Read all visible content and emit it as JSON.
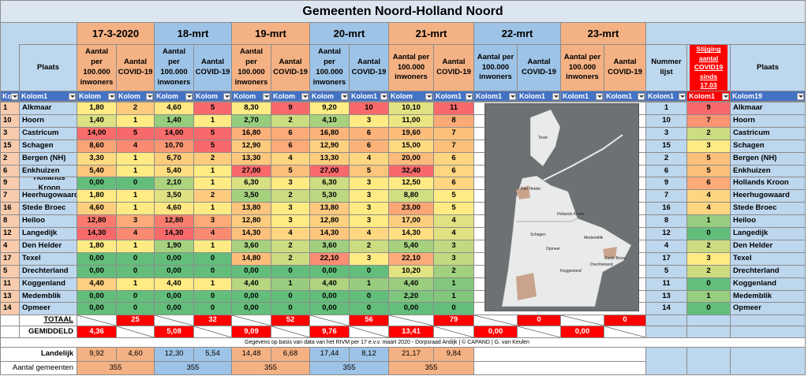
{
  "title": "Gemeenten Noord-Holland Noord",
  "dates": [
    "17-3-2020",
    "18-mrt",
    "19-mrt",
    "20-mrt",
    "21-mrt",
    "22-mrt",
    "23-mrt"
  ],
  "column_headers": {
    "place": "Plaats",
    "per_100k": "Aantal per 100.000 inwoners",
    "covid": "Aantal COVID-19",
    "list_number": "Nummer lijst",
    "increase": "Stijging aantal COVID19 sinds 17.03",
    "place_right": "Plaats"
  },
  "filters": [
    "Koloi",
    "Kolom1",
    "Kolom",
    "Kolom",
    "Kolom",
    "Kolom",
    "Kolom",
    "Kolom",
    "Kolom",
    "Kolom1",
    "Kolom",
    "Kolom1",
    "Kolom1",
    "Kolom1",
    "Kolom1",
    "Kolom1",
    "Kolom1",
    "Kolom1",
    "Kolom19"
  ],
  "rows": [
    {
      "id": 1,
      "place": "Alkmaar",
      "values": [
        "1,80",
        2,
        "4,60",
        5,
        "8,30",
        9,
        "9,20",
        10,
        "10,10",
        11
      ],
      "list_number": 1,
      "increase": 9,
      "place_right": "Alkmaar"
    },
    {
      "id": 10,
      "place": "Hoorn",
      "values": [
        "1,40",
        1,
        "1,40",
        1,
        "2,70",
        2,
        "4,10",
        3,
        "11,00",
        8
      ],
      "list_number": 10,
      "increase": 7,
      "place_right": "Hoorn"
    },
    {
      "id": 3,
      "place": "Castricum",
      "values": [
        "14,00",
        5,
        "14,00",
        5,
        "16,80",
        6,
        "16,80",
        6,
        "19,60",
        7
      ],
      "list_number": 3,
      "increase": 2,
      "place_right": "Castricum"
    },
    {
      "id": 15,
      "place": "Schagen",
      "values": [
        "8,60",
        4,
        "10,70",
        5,
        "12,90",
        6,
        "12,90",
        6,
        "15,00",
        7
      ],
      "list_number": 15,
      "increase": 3,
      "place_right": "Schagen"
    },
    {
      "id": 2,
      "place": "Bergen (NH)",
      "values": [
        "3,30",
        1,
        "6,70",
        2,
        "13,30",
        4,
        "13,30",
        4,
        "20,00",
        6
      ],
      "list_number": 2,
      "increase": 5,
      "place_right": "Bergen (NH)"
    },
    {
      "id": 6,
      "place": "Enkhuizen",
      "values": [
        "5,40",
        1,
        "5,40",
        1,
        "27,00",
        5,
        "27,00",
        5,
        "32,40",
        6
      ],
      "list_number": 6,
      "increase": 5,
      "place_right": "Enkhuizen"
    },
    {
      "id": 9,
      "place": "Hollands Kroon",
      "values": [
        "0,00",
        0,
        "2,10",
        1,
        "6,30",
        3,
        "6,30",
        3,
        "12,50",
        6
      ],
      "list_number": 9,
      "increase": 6,
      "place_right": "Hollands Kroon"
    },
    {
      "id": 7,
      "place": "Heerhugowaard",
      "values": [
        "1,80",
        1,
        "3,50",
        2,
        "3,50",
        2,
        "5,30",
        3,
        "8,80",
        5
      ],
      "list_number": 7,
      "increase": 4,
      "place_right": "Heerhugowaard"
    },
    {
      "id": 16,
      "place": "Stede Broec",
      "values": [
        "4,60",
        1,
        "4,60",
        1,
        "13,80",
        3,
        "13,80",
        3,
        "23,00",
        5
      ],
      "list_number": 16,
      "increase": 4,
      "place_right": "Stede Broec"
    },
    {
      "id": 8,
      "place": "Heiloo",
      "values": [
        "12,80",
        3,
        "12,80",
        3,
        "12,80",
        3,
        "12,80",
        3,
        "17,00",
        4
      ],
      "list_number": 8,
      "increase": 1,
      "place_right": "Heiloo"
    },
    {
      "id": 12,
      "place": "Langedijk",
      "values": [
        "14,30",
        4,
        "14,30",
        4,
        "14,30",
        4,
        "14,30",
        4,
        "14,30",
        4
      ],
      "list_number": 12,
      "increase": 0,
      "place_right": "Langedijk"
    },
    {
      "id": 4,
      "place": "Den Helder",
      "values": [
        "1,80",
        1,
        "1,90",
        1,
        "3,60",
        2,
        "3,60",
        2,
        "5,40",
        3
      ],
      "list_number": 4,
      "increase": 2,
      "place_right": "Den Helder"
    },
    {
      "id": 17,
      "place": "Texel",
      "values": [
        "0,00",
        0,
        "0,00",
        0,
        "14,80",
        2,
        "22,10",
        3,
        "22,10",
        3
      ],
      "list_number": 17,
      "increase": 3,
      "place_right": "Texel"
    },
    {
      "id": 5,
      "place": "Drechterland",
      "values": [
        "0,00",
        0,
        "0,00",
        0,
        "0,00",
        0,
        "0,00",
        0,
        "10,20",
        2
      ],
      "list_number": 5,
      "increase": 2,
      "place_right": "Drechterland"
    },
    {
      "id": 11,
      "place": "Koggenland",
      "values": [
        "4,40",
        1,
        "4,40",
        1,
        "4,40",
        1,
        "4,40",
        1,
        "4,40",
        1
      ],
      "list_number": 11,
      "increase": 0,
      "place_right": "Koggenland"
    },
    {
      "id": 13,
      "place": "Medemblik",
      "values": [
        "0,00",
        0,
        "0,00",
        0,
        "0,00",
        0,
        "0,00",
        0,
        "2,20",
        1
      ],
      "list_number": 13,
      "increase": 1,
      "place_right": "Medemblik"
    },
    {
      "id": 14,
      "place": "Opmeer",
      "values": [
        "0,00",
        0,
        "0,00",
        0,
        "0,00",
        0,
        "0,00",
        0,
        "0,00",
        0
      ],
      "list_number": 14,
      "increase": 0,
      "place_right": "Opmeer"
    }
  ],
  "totals": {
    "label": "TOTAAL",
    "values": [
      25,
      32,
      52,
      56,
      79,
      0,
      0
    ]
  },
  "averages": {
    "label": "GEMIDDELD",
    "values": [
      "4,36",
      "5,08",
      "9,09",
      "9,76",
      "13,41",
      "0,00",
      "0,00"
    ]
  },
  "note": "Gegevens op basis van data van het RIVM per 17 e.v.v. maart 2020 - Dorpsraad Andijk | © CAPAND | G. van Keulen",
  "national": {
    "label": "Landelijk",
    "values": [
      "9,92",
      "4,60",
      "12,30",
      "5,54",
      "14,48",
      "6,68",
      "17,44",
      "8,12",
      "21,17",
      "9,84"
    ]
  },
  "municipalities": {
    "label": "Aantal gemeenten",
    "values": [
      355,
      355,
      355,
      355,
      355
    ]
  },
  "map_labels": [
    "Texel",
    "Den Helder",
    "Hollands Kroon",
    "Schagen",
    "Medemblik",
    "Stede Broec",
    "Opmeer",
    "Koggenland",
    "Drechterland"
  ]
}
